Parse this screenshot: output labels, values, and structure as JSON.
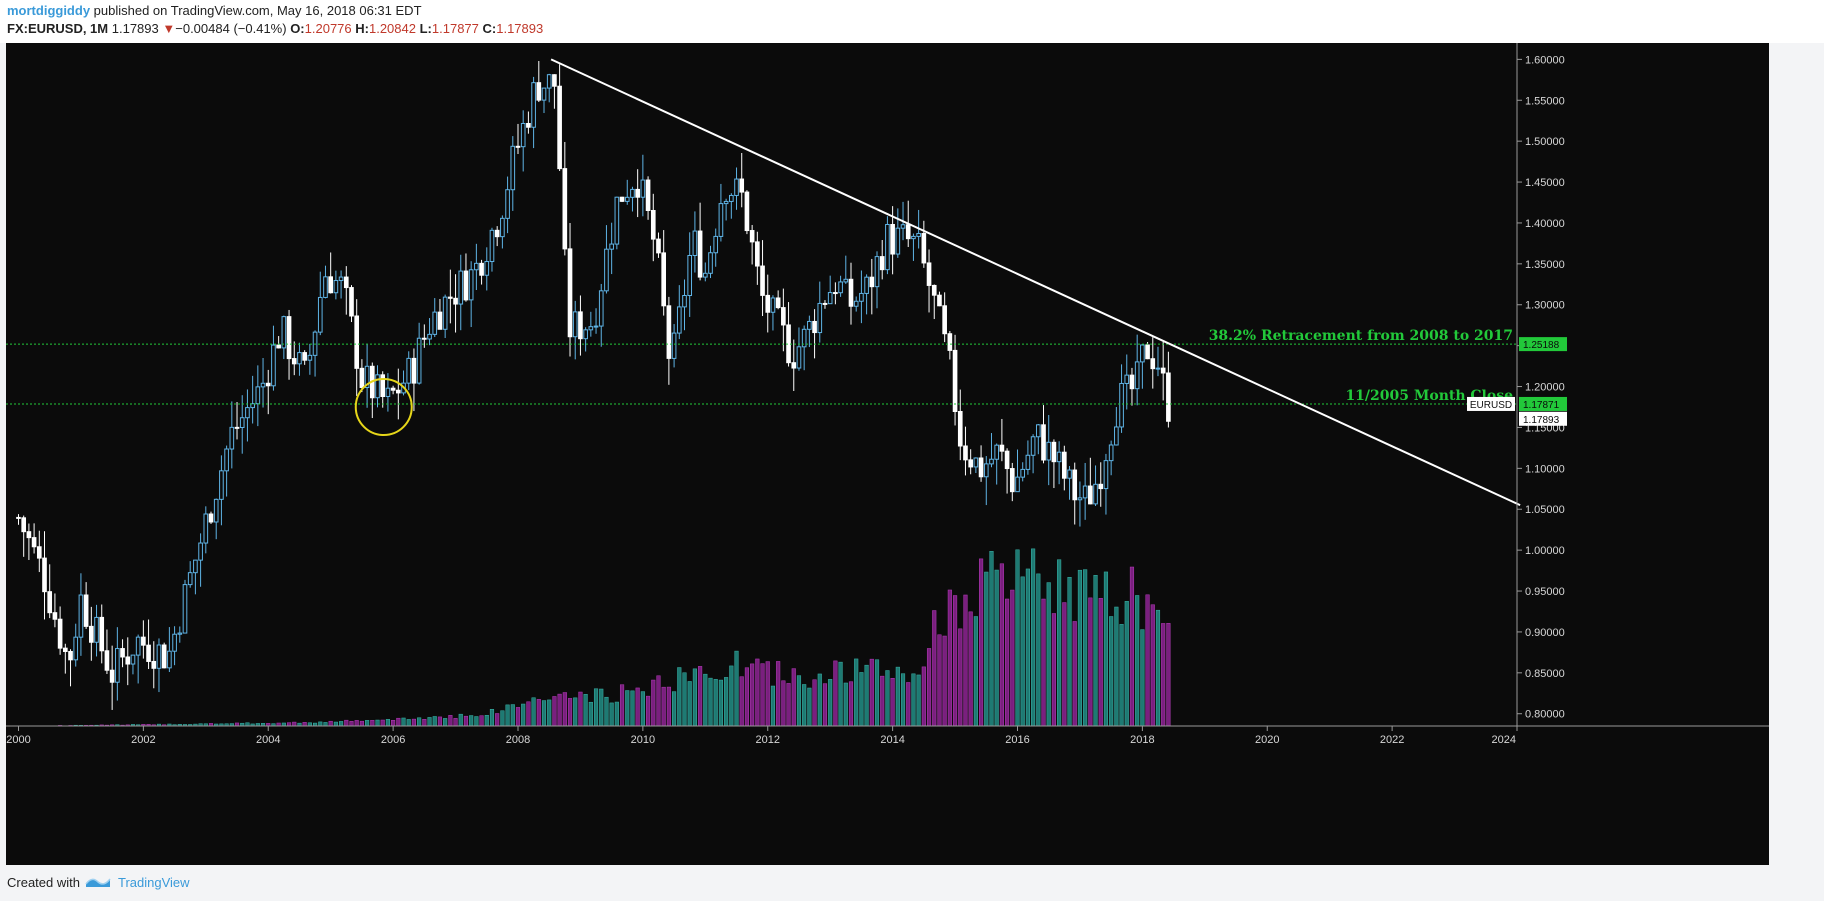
{
  "header": {
    "author": "mortdiggiddy",
    "published": " published on TradingView.com, May 16, 2018 06:31 EDT",
    "symbol": "FX:EURUSD, 1M",
    "last": "1.17893",
    "arrow": "▼",
    "change": "−0.00484 (−0.41%)",
    "open_label": "O:",
    "open": "1.20776",
    "high_label": "H:",
    "high": "1.20842",
    "low_label": "L:",
    "low": "1.17877",
    "close_label": "C:",
    "close": "1.17893"
  },
  "footer": {
    "created_with": "Created with",
    "brand": "TradingView"
  },
  "chart_data": {
    "type": "candlestick",
    "symbol": "EURUSD",
    "interval": "1M",
    "xlim": [
      1999.8,
      2024
    ],
    "ylim": [
      0.785,
      1.62
    ],
    "x_ticks": [
      "2000",
      "2002",
      "2004",
      "2006",
      "2008",
      "2010",
      "2012",
      "2014",
      "2016",
      "2018",
      "2020",
      "2022",
      "2024"
    ],
    "y_ticks": [
      "1.60000",
      "1.55000",
      "1.50000",
      "1.45000",
      "1.40000",
      "1.35000",
      "1.30000",
      "1.25000",
      "1.20000",
      "1.15000",
      "1.10000",
      "1.05000",
      "1.00000",
      "0.95000",
      "0.90000",
      "0.85000",
      "0.80000"
    ],
    "colors": {
      "background": "#0b0b0b",
      "up_candle": "#5fb4e6",
      "down_candle": "#ffffff",
      "volume_up": "#1e7a73",
      "volume_down": "#7a1f7f",
      "hline": "#22c93a",
      "trendline": "#ffffff",
      "circle": "#e6d619"
    },
    "price_path": [
      [
        2000.0,
        1.04
      ],
      [
        2000.4,
        0.97
      ],
      [
        2000.8,
        0.86
      ],
      [
        2001.0,
        0.94
      ],
      [
        2001.5,
        0.85
      ],
      [
        2001.9,
        0.89
      ],
      [
        2002.4,
        0.87
      ],
      [
        2002.8,
        0.98
      ],
      [
        2003.4,
        1.14
      ],
      [
        2003.9,
        1.2
      ],
      [
        2004.2,
        1.27
      ],
      [
        2004.6,
        1.21
      ],
      [
        2004.9,
        1.34
      ],
      [
        2005.2,
        1.32
      ],
      [
        2005.5,
        1.21
      ],
      [
        2005.9,
        1.18
      ],
      [
        2006.3,
        1.22
      ],
      [
        2006.6,
        1.28
      ],
      [
        2006.9,
        1.31
      ],
      [
        2007.3,
        1.34
      ],
      [
        2007.7,
        1.41
      ],
      [
        2007.9,
        1.47
      ],
      [
        2008.3,
        1.57
      ],
      [
        2008.6,
        1.57
      ],
      [
        2008.8,
        1.27
      ],
      [
        2009.2,
        1.28
      ],
      [
        2009.6,
        1.43
      ],
      [
        2009.9,
        1.46
      ],
      [
        2010.2,
        1.37
      ],
      [
        2010.45,
        1.22
      ],
      [
        2010.8,
        1.38
      ],
      [
        2011.0,
        1.34
      ],
      [
        2011.3,
        1.45
      ],
      [
        2011.6,
        1.43
      ],
      [
        2011.9,
        1.31
      ],
      [
        2012.4,
        1.24
      ],
      [
        2012.6,
        1.26
      ],
      [
        2012.9,
        1.31
      ],
      [
        2013.1,
        1.33
      ],
      [
        2013.3,
        1.3
      ],
      [
        2013.6,
        1.32
      ],
      [
        2013.9,
        1.38
      ],
      [
        2014.2,
        1.38
      ],
      [
        2014.4,
        1.37
      ],
      [
        2014.6,
        1.32
      ],
      [
        2014.9,
        1.23
      ],
      [
        2015.1,
        1.13
      ],
      [
        2015.4,
        1.1
      ],
      [
        2015.7,
        1.12
      ],
      [
        2015.95,
        1.08
      ],
      [
        2016.3,
        1.14
      ],
      [
        2016.6,
        1.11
      ],
      [
        2016.9,
        1.07
      ],
      [
        2017.1,
        1.06
      ],
      [
        2017.3,
        1.09
      ],
      [
        2017.6,
        1.18
      ],
      [
        2017.9,
        1.2
      ],
      [
        2018.05,
        1.25
      ],
      [
        2018.25,
        1.23
      ],
      [
        2018.4,
        1.178
      ]
    ],
    "volume_path": [
      [
        2000.0,
        0
      ],
      [
        2004.3,
        0.3
      ],
      [
        2006.0,
        0.6
      ],
      [
        2007.5,
        1.2
      ],
      [
        2008.4,
        2.8
      ],
      [
        2009.5,
        3.0
      ],
      [
        2010.5,
        4.5
      ],
      [
        2011.5,
        6.0
      ],
      [
        2012.4,
        4.8
      ],
      [
        2013.5,
        5.5
      ],
      [
        2014.4,
        5.0
      ],
      [
        2014.8,
        11.5
      ],
      [
        2015.8,
        14.5
      ],
      [
        2016.8,
        14.0
      ],
      [
        2017.3,
        12.0
      ],
      [
        2017.9,
        13.5
      ],
      [
        2018.3,
        9.0
      ]
    ],
    "volume_max": 17,
    "trendline": {
      "from": [
        2008.53,
        1.6
      ],
      "to": [
        2024.05,
        1.055
      ]
    },
    "hlines": [
      {
        "price": 1.25188,
        "label": "38.2% Retracement from 2008 to 2017"
      },
      {
        "price": 1.17871,
        "label": "11/2005 Month Close"
      }
    ],
    "circle": {
      "x": 2005.85,
      "price": 1.175
    },
    "price_tags": [
      {
        "text": "1.25188",
        "price": 1.25188,
        "style": "green"
      },
      {
        "text": "1.17871",
        "price": 1.17871,
        "style": "green"
      },
      {
        "text": "1.17893",
        "price": 1.17893,
        "style": "white"
      },
      {
        "text": "EURUSD",
        "price": 1.17871,
        "style": "symbol"
      }
    ]
  }
}
